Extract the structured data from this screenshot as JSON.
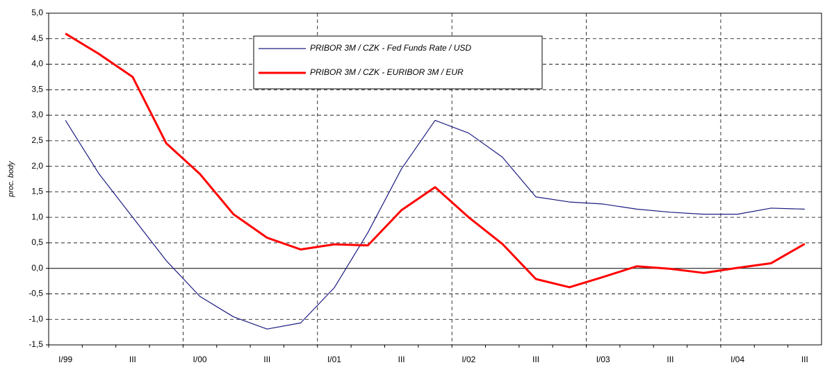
{
  "chart_data": {
    "type": "line",
    "y_label": "proc. body",
    "categories": [
      "I/99",
      null,
      "III",
      null,
      "I/00",
      null,
      "III",
      null,
      "I/01",
      null,
      "III",
      null,
      "I/02",
      null,
      "III",
      null,
      "I/03",
      null,
      "III",
      null,
      "I/04",
      null,
      "III"
    ],
    "series": [
      {
        "name": "PRIBOR 3M / CZK - Fed Funds Rate / USD",
        "color": "#1a1a80",
        "values": [
          2.9,
          1.85,
          1.0,
          0.15,
          -0.55,
          -0.95,
          -1.19,
          -1.07,
          -0.38,
          0.7,
          1.95,
          2.9,
          2.65,
          2.18,
          1.4,
          1.3,
          1.26,
          1.16,
          1.1,
          1.06,
          1.06,
          1.18,
          1.16
        ]
      },
      {
        "name": "PRIBOR 3M / CZK - EURIBOR 3M / EUR",
        "color": "#ff0000",
        "values": [
          4.6,
          4.2,
          3.75,
          2.45,
          1.85,
          1.06,
          0.6,
          0.37,
          0.47,
          0.45,
          1.14,
          1.59,
          1.0,
          0.48,
          -0.21,
          -0.37,
          -0.17,
          0.04,
          -0.01,
          -0.09,
          0.01,
          0.1,
          0.48
        ]
      }
    ],
    "ylim": [
      -1.5,
      5.0
    ],
    "yticks": [
      {
        "value": -1.5,
        "label": "-1,5"
      },
      {
        "value": -1.0,
        "label": "-1,0"
      },
      {
        "value": -0.5,
        "label": "-0,5"
      },
      {
        "value": 0,
        "label": "0,0"
      },
      {
        "value": 0.5,
        "label": "0,5"
      },
      {
        "value": 1.0,
        "label": "1,0"
      },
      {
        "value": 1.5,
        "label": "1,5"
      },
      {
        "value": 2.0,
        "label": "2,0"
      },
      {
        "value": 2.5,
        "label": "2,5"
      },
      {
        "value": 3.0,
        "label": "3,0"
      },
      {
        "value": 3.5,
        "label": "3,5"
      },
      {
        "value": 4.0,
        "label": "4,0"
      },
      {
        "value": 4.5,
        "label": "4,5"
      },
      {
        "value": 5.0,
        "label": "5,0"
      }
    ],
    "grid": true
  }
}
